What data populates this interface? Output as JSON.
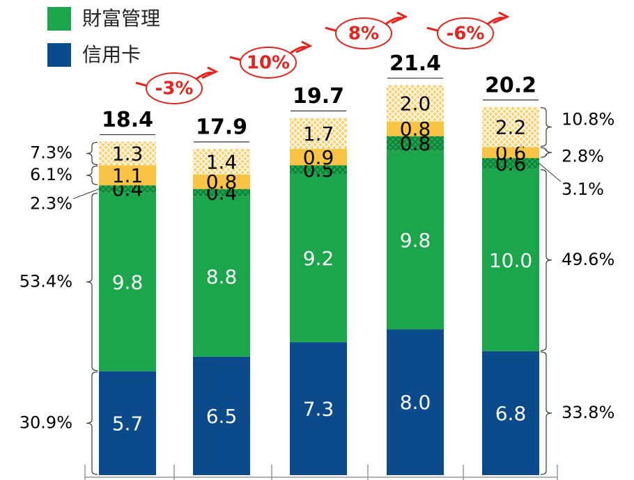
{
  "chart_data": {
    "type": "bar",
    "stacked": true,
    "categories": [
      null,
      null,
      null,
      null,
      null
    ],
    "series": [
      {
        "name": "信用卡",
        "color": "#0b4a8b",
        "values": [
          5.7,
          6.5,
          7.3,
          8.0,
          6.8
        ],
        "value_labels": [
          "5.7",
          "6.5",
          "7.3",
          "8.0",
          "6.8"
        ]
      },
      {
        "name": "財富管理",
        "color": "#1ca64c",
        "values": [
          9.8,
          8.8,
          9.2,
          9.8,
          10.0
        ],
        "value_labels": [
          "9.8",
          "8.8",
          "9.2",
          "9.8",
          "10.0"
        ]
      },
      {
        "color": "#1ca64c",
        "hatch": true,
        "values": [
          0.4,
          0.4,
          0.5,
          0.8,
          0.6
        ],
        "value_labels": [
          "0.4",
          "0.4",
          "0.5",
          "0.8",
          "0.6"
        ]
      },
      {
        "color": "#f9c343",
        "values": [
          1.1,
          0.8,
          0.9,
          0.8,
          0.6
        ],
        "value_labels": [
          "1.1",
          "0.8",
          "0.9",
          "0.8",
          "0.6"
        ]
      },
      {
        "color": "#f9c343",
        "hatch": true,
        "values": [
          1.3,
          1.4,
          1.7,
          2.0,
          2.2
        ],
        "value_labels": [
          "1.3",
          "1.4",
          "1.7",
          "2.0",
          "2.2"
        ]
      }
    ],
    "totals": [
      18.4,
      17.9,
      19.7,
      21.4,
      20.2
    ],
    "growth_labels": [
      "-3%",
      "10%",
      "8%",
      "-6%"
    ],
    "left_share_labels": [
      "30.9%",
      "53.4%",
      "2.3%",
      "6.1%",
      "7.3%"
    ],
    "right_share_labels": [
      "33.8%",
      "49.6%",
      "3.1%",
      "2.8%",
      "10.8%"
    ]
  }
}
